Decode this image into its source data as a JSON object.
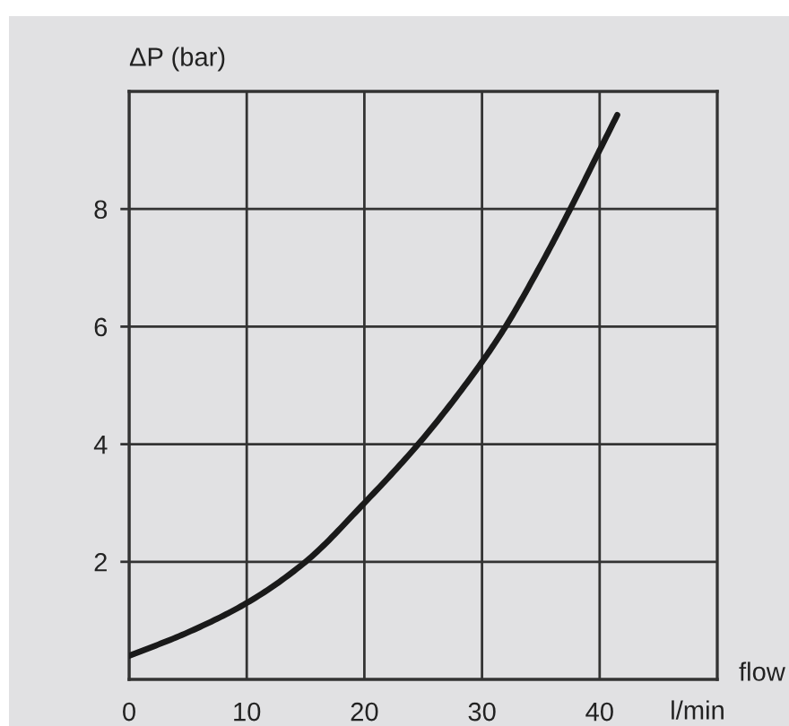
{
  "chart_data": {
    "type": "line",
    "xlabel": "flow",
    "ylabel": "ΔP (bar)",
    "annotations": [
      "l/min"
    ],
    "x": [
      0,
      5,
      10,
      15,
      20,
      25,
      30,
      32,
      35,
      37.5,
      40,
      41.5
    ],
    "series": [
      {
        "color": "#1a1a1a",
        "values": [
          0.4,
          0.8,
          1.3,
          2.0,
          3.0,
          4.1,
          5.4,
          6.0,
          7.05,
          8.0,
          9.0,
          9.6
        ]
      }
    ],
    "xlim": [
      0,
      50
    ],
    "xticks": [
      0,
      10,
      20,
      30,
      40
    ],
    "ylim": [
      0,
      10
    ],
    "yticks": [
      2,
      4,
      6,
      8
    ],
    "grid": true,
    "marker": "none",
    "line_style": "solid"
  }
}
